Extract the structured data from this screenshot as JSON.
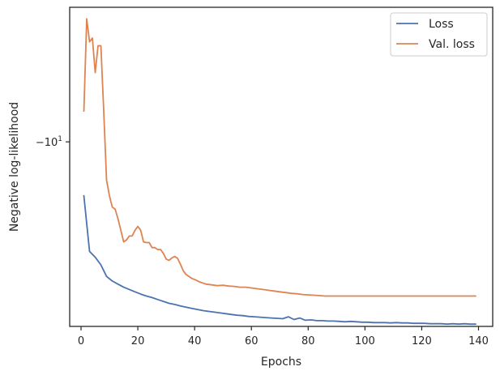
{
  "chart_data": {
    "type": "line",
    "xlabel": "Epochs",
    "ylabel": "Negative log-likelihood",
    "xlim": [
      -4,
      145
    ],
    "ylim": [
      -13.5,
      -5.2
    ],
    "x_ticks": [
      0,
      20,
      40,
      60,
      80,
      100,
      120,
      140
    ],
    "y_tick_value": -10,
    "y_tick_label": {
      "base": "−10",
      "exp": "1"
    },
    "grid": false,
    "legend_position": "top-right",
    "series": [
      {
        "name": "Loss",
        "color": "#4c72b0",
        "x": [
          1,
          3,
          5,
          7,
          9,
          11,
          13,
          15,
          17,
          19,
          21,
          23,
          25,
          27,
          29,
          31,
          33,
          35,
          37,
          39,
          41,
          43,
          45,
          47,
          49,
          51,
          53,
          55,
          57,
          59,
          61,
          63,
          65,
          67,
          69,
          71,
          73,
          75,
          77,
          79,
          81,
          83,
          85,
          87,
          89,
          91,
          93,
          95,
          97,
          99,
          101,
          103,
          105,
          107,
          109,
          111,
          113,
          115,
          117,
          119,
          121,
          123,
          125,
          127,
          129,
          131,
          133,
          135,
          137,
          139
        ],
        "values": [
          -8.6,
          -7.15,
          -7.0,
          -6.8,
          -6.5,
          -6.38,
          -6.3,
          -6.22,
          -6.16,
          -6.1,
          -6.04,
          -5.99,
          -5.95,
          -5.9,
          -5.85,
          -5.8,
          -5.77,
          -5.73,
          -5.7,
          -5.67,
          -5.64,
          -5.61,
          -5.59,
          -5.57,
          -5.55,
          -5.53,
          -5.51,
          -5.49,
          -5.48,
          -5.46,
          -5.45,
          -5.44,
          -5.43,
          -5.42,
          -5.41,
          -5.4,
          -5.45,
          -5.38,
          -5.42,
          -5.36,
          -5.37,
          -5.35,
          -5.35,
          -5.34,
          -5.34,
          -5.33,
          -5.32,
          -5.33,
          -5.32,
          -5.31,
          -5.31,
          -5.3,
          -5.3,
          -5.3,
          -5.29,
          -5.3,
          -5.29,
          -5.29,
          -5.28,
          -5.28,
          -5.28,
          -5.27,
          -5.27,
          -5.27,
          -5.26,
          -5.27,
          -5.26,
          -5.27,
          -5.26,
          -5.26
        ]
      },
      {
        "name": "Val. loss",
        "color": "#dd8452",
        "x": [
          1,
          2,
          3,
          4,
          5,
          6,
          7,
          8,
          9,
          10,
          11,
          12,
          13,
          14,
          15,
          16,
          17,
          18,
          19,
          20,
          21,
          22,
          23,
          24,
          25,
          26,
          27,
          28,
          29,
          30,
          31,
          32,
          33,
          34,
          35,
          36,
          37,
          38,
          39,
          40,
          42,
          44,
          46,
          48,
          50,
          52,
          54,
          56,
          58,
          60,
          62,
          64,
          66,
          68,
          70,
          72,
          74,
          76,
          78,
          80,
          82,
          84,
          86,
          88,
          90,
          92,
          94,
          96,
          98,
          100,
          102,
          104,
          106,
          108,
          110,
          112,
          114,
          116,
          118,
          120,
          122,
          124,
          126,
          128,
          130,
          132,
          134,
          136,
          138,
          139
        ],
        "values": [
          -10.8,
          -13.2,
          -12.6,
          -12.7,
          -11.8,
          -12.5,
          -12.5,
          -10.8,
          -9.0,
          -8.6,
          -8.3,
          -8.25,
          -8.0,
          -7.7,
          -7.4,
          -7.45,
          -7.55,
          -7.55,
          -7.7,
          -7.8,
          -7.7,
          -7.4,
          -7.38,
          -7.38,
          -7.25,
          -7.25,
          -7.2,
          -7.2,
          -7.1,
          -6.95,
          -6.92,
          -6.98,
          -7.02,
          -6.97,
          -6.82,
          -6.65,
          -6.55,
          -6.5,
          -6.45,
          -6.42,
          -6.35,
          -6.3,
          -6.28,
          -6.26,
          -6.27,
          -6.25,
          -6.24,
          -6.22,
          -6.22,
          -6.2,
          -6.18,
          -6.16,
          -6.14,
          -6.12,
          -6.1,
          -6.08,
          -6.06,
          -6.05,
          -6.03,
          -6.02,
          -6.01,
          -6.0,
          -5.99,
          -5.99,
          -5.99,
          -5.99,
          -5.99,
          -5.99,
          -5.99,
          -5.99,
          -5.99,
          -5.99,
          -5.99,
          -5.99,
          -5.99,
          -5.99,
          -5.99,
          -5.99,
          -5.99,
          -5.99,
          -5.99,
          -5.99,
          -5.99,
          -5.99,
          -5.99,
          -5.99,
          -5.99,
          -5.99,
          -5.99,
          -5.99
        ]
      }
    ]
  }
}
